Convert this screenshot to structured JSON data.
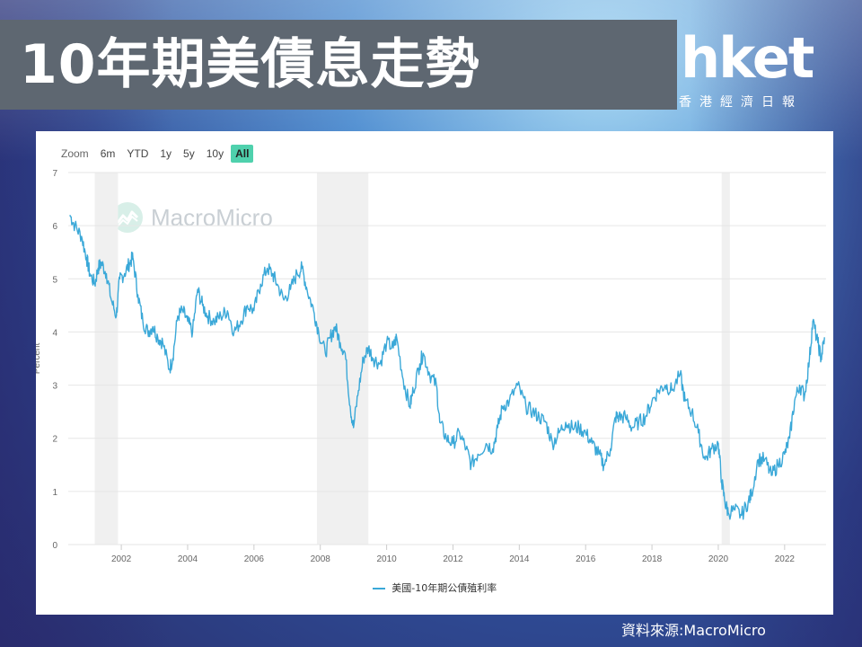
{
  "header": {
    "title": "10年期美債息走勢",
    "brand": "hket",
    "brand_sub": "香港經濟日報"
  },
  "zoom": {
    "label": "Zoom",
    "buttons": [
      "6m",
      "YTD",
      "1y",
      "5y",
      "10y",
      "All"
    ],
    "active": "All"
  },
  "watermark": "MacroMicro",
  "source": "資料來源:MacroMicro",
  "colors": {
    "line": "#3aa8d8",
    "recession": "#f0f0f0",
    "accent": "#4fd1ad"
  },
  "chart_data": {
    "type": "line",
    "title": "",
    "xlabel": "",
    "ylabel": "Percent",
    "xlim": [
      2000.4,
      2023.25
    ],
    "ylim": [
      0,
      7
    ],
    "yticks": [
      0,
      1,
      2,
      3,
      4,
      5,
      6,
      7
    ],
    "xticks": [
      2002,
      2004,
      2006,
      2008,
      2010,
      2012,
      2014,
      2016,
      2018,
      2020,
      2022
    ],
    "grid": true,
    "legend": "bottom-center",
    "recession_bands": [
      [
        2001.2,
        2001.9
      ],
      [
        2007.9,
        2009.45
      ],
      [
        2020.1,
        2020.35
      ]
    ],
    "series": [
      {
        "name": "美國-10年期公債殖利率",
        "x": [
          2000.45,
          2000.6,
          2000.8,
          2000.95,
          2001.05,
          2001.2,
          2001.3,
          2001.4,
          2001.55,
          2001.7,
          2001.85,
          2001.95,
          2002.1,
          2002.25,
          2002.35,
          2002.5,
          2002.65,
          2002.8,
          2002.95,
          2003.1,
          2003.25,
          2003.45,
          2003.55,
          2003.7,
          2003.85,
          2004.0,
          2004.15,
          2004.3,
          2004.45,
          2004.6,
          2004.8,
          2005.0,
          2005.2,
          2005.4,
          2005.6,
          2005.8,
          2006.0,
          2006.2,
          2006.4,
          2006.55,
          2006.7,
          2006.9,
          2007.1,
          2007.3,
          2007.45,
          2007.6,
          2007.8,
          2007.95,
          2008.15,
          2008.3,
          2008.45,
          2008.6,
          2008.75,
          2008.9,
          2009.0,
          2009.15,
          2009.3,
          2009.45,
          2009.6,
          2009.8,
          2010.0,
          2010.2,
          2010.3,
          2010.5,
          2010.7,
          2010.8,
          2011.0,
          2011.1,
          2011.3,
          2011.5,
          2011.6,
          2011.8,
          2012.0,
          2012.2,
          2012.4,
          2012.55,
          2012.75,
          2013.0,
          2013.2,
          2013.35,
          2013.5,
          2013.7,
          2013.95,
          2014.2,
          2014.4,
          2014.6,
          2014.8,
          2015.0,
          2015.2,
          2015.4,
          2015.6,
          2015.8,
          2016.0,
          2016.2,
          2016.4,
          2016.55,
          2016.75,
          2016.9,
          2017.0,
          2017.2,
          2017.4,
          2017.6,
          2017.8,
          2018.0,
          2018.2,
          2018.4,
          2018.6,
          2018.85,
          2019.0,
          2019.2,
          2019.4,
          2019.6,
          2019.8,
          2020.0,
          2020.1,
          2020.2,
          2020.3,
          2020.5,
          2020.7,
          2020.9,
          2021.0,
          2021.2,
          2021.4,
          2021.6,
          2021.8,
          2022.0,
          2022.15,
          2022.3,
          2022.45,
          2022.6,
          2022.75,
          2022.85,
          2023.0,
          2023.1,
          2023.2
        ],
        "values": [
          6.2,
          6.0,
          5.8,
          5.4,
          5.1,
          4.9,
          5.2,
          5.3,
          5.1,
          4.6,
          4.3,
          5.0,
          5.1,
          5.3,
          5.4,
          4.7,
          4.2,
          4.0,
          4.1,
          3.9,
          3.8,
          3.3,
          3.5,
          4.3,
          4.4,
          4.2,
          4.0,
          4.8,
          4.5,
          4.3,
          4.2,
          4.3,
          4.4,
          4.0,
          4.2,
          4.5,
          4.4,
          4.9,
          5.2,
          5.1,
          4.9,
          4.6,
          4.8,
          5.1,
          5.2,
          4.8,
          4.4,
          4.0,
          3.6,
          3.9,
          4.1,
          3.8,
          3.6,
          2.6,
          2.2,
          2.9,
          3.5,
          3.7,
          3.5,
          3.4,
          3.8,
          3.7,
          3.9,
          3.1,
          2.6,
          2.9,
          3.4,
          3.6,
          3.2,
          3.0,
          2.3,
          2.0,
          1.9,
          2.1,
          1.8,
          1.5,
          1.7,
          1.9,
          1.8,
          2.2,
          2.6,
          2.7,
          3.0,
          2.6,
          2.5,
          2.4,
          2.3,
          1.9,
          2.1,
          2.3,
          2.2,
          2.2,
          2.1,
          1.9,
          1.7,
          1.5,
          1.8,
          2.4,
          2.4,
          2.4,
          2.2,
          2.3,
          2.4,
          2.7,
          2.9,
          3.0,
          2.9,
          3.2,
          2.7,
          2.5,
          2.1,
          1.6,
          1.8,
          1.9,
          1.2,
          0.8,
          0.6,
          0.65,
          0.55,
          0.8,
          0.95,
          1.6,
          1.6,
          1.3,
          1.5,
          1.7,
          2.0,
          2.7,
          3.0,
          2.8,
          3.5,
          4.2,
          3.8,
          3.5,
          3.9
        ]
      }
    ]
  }
}
